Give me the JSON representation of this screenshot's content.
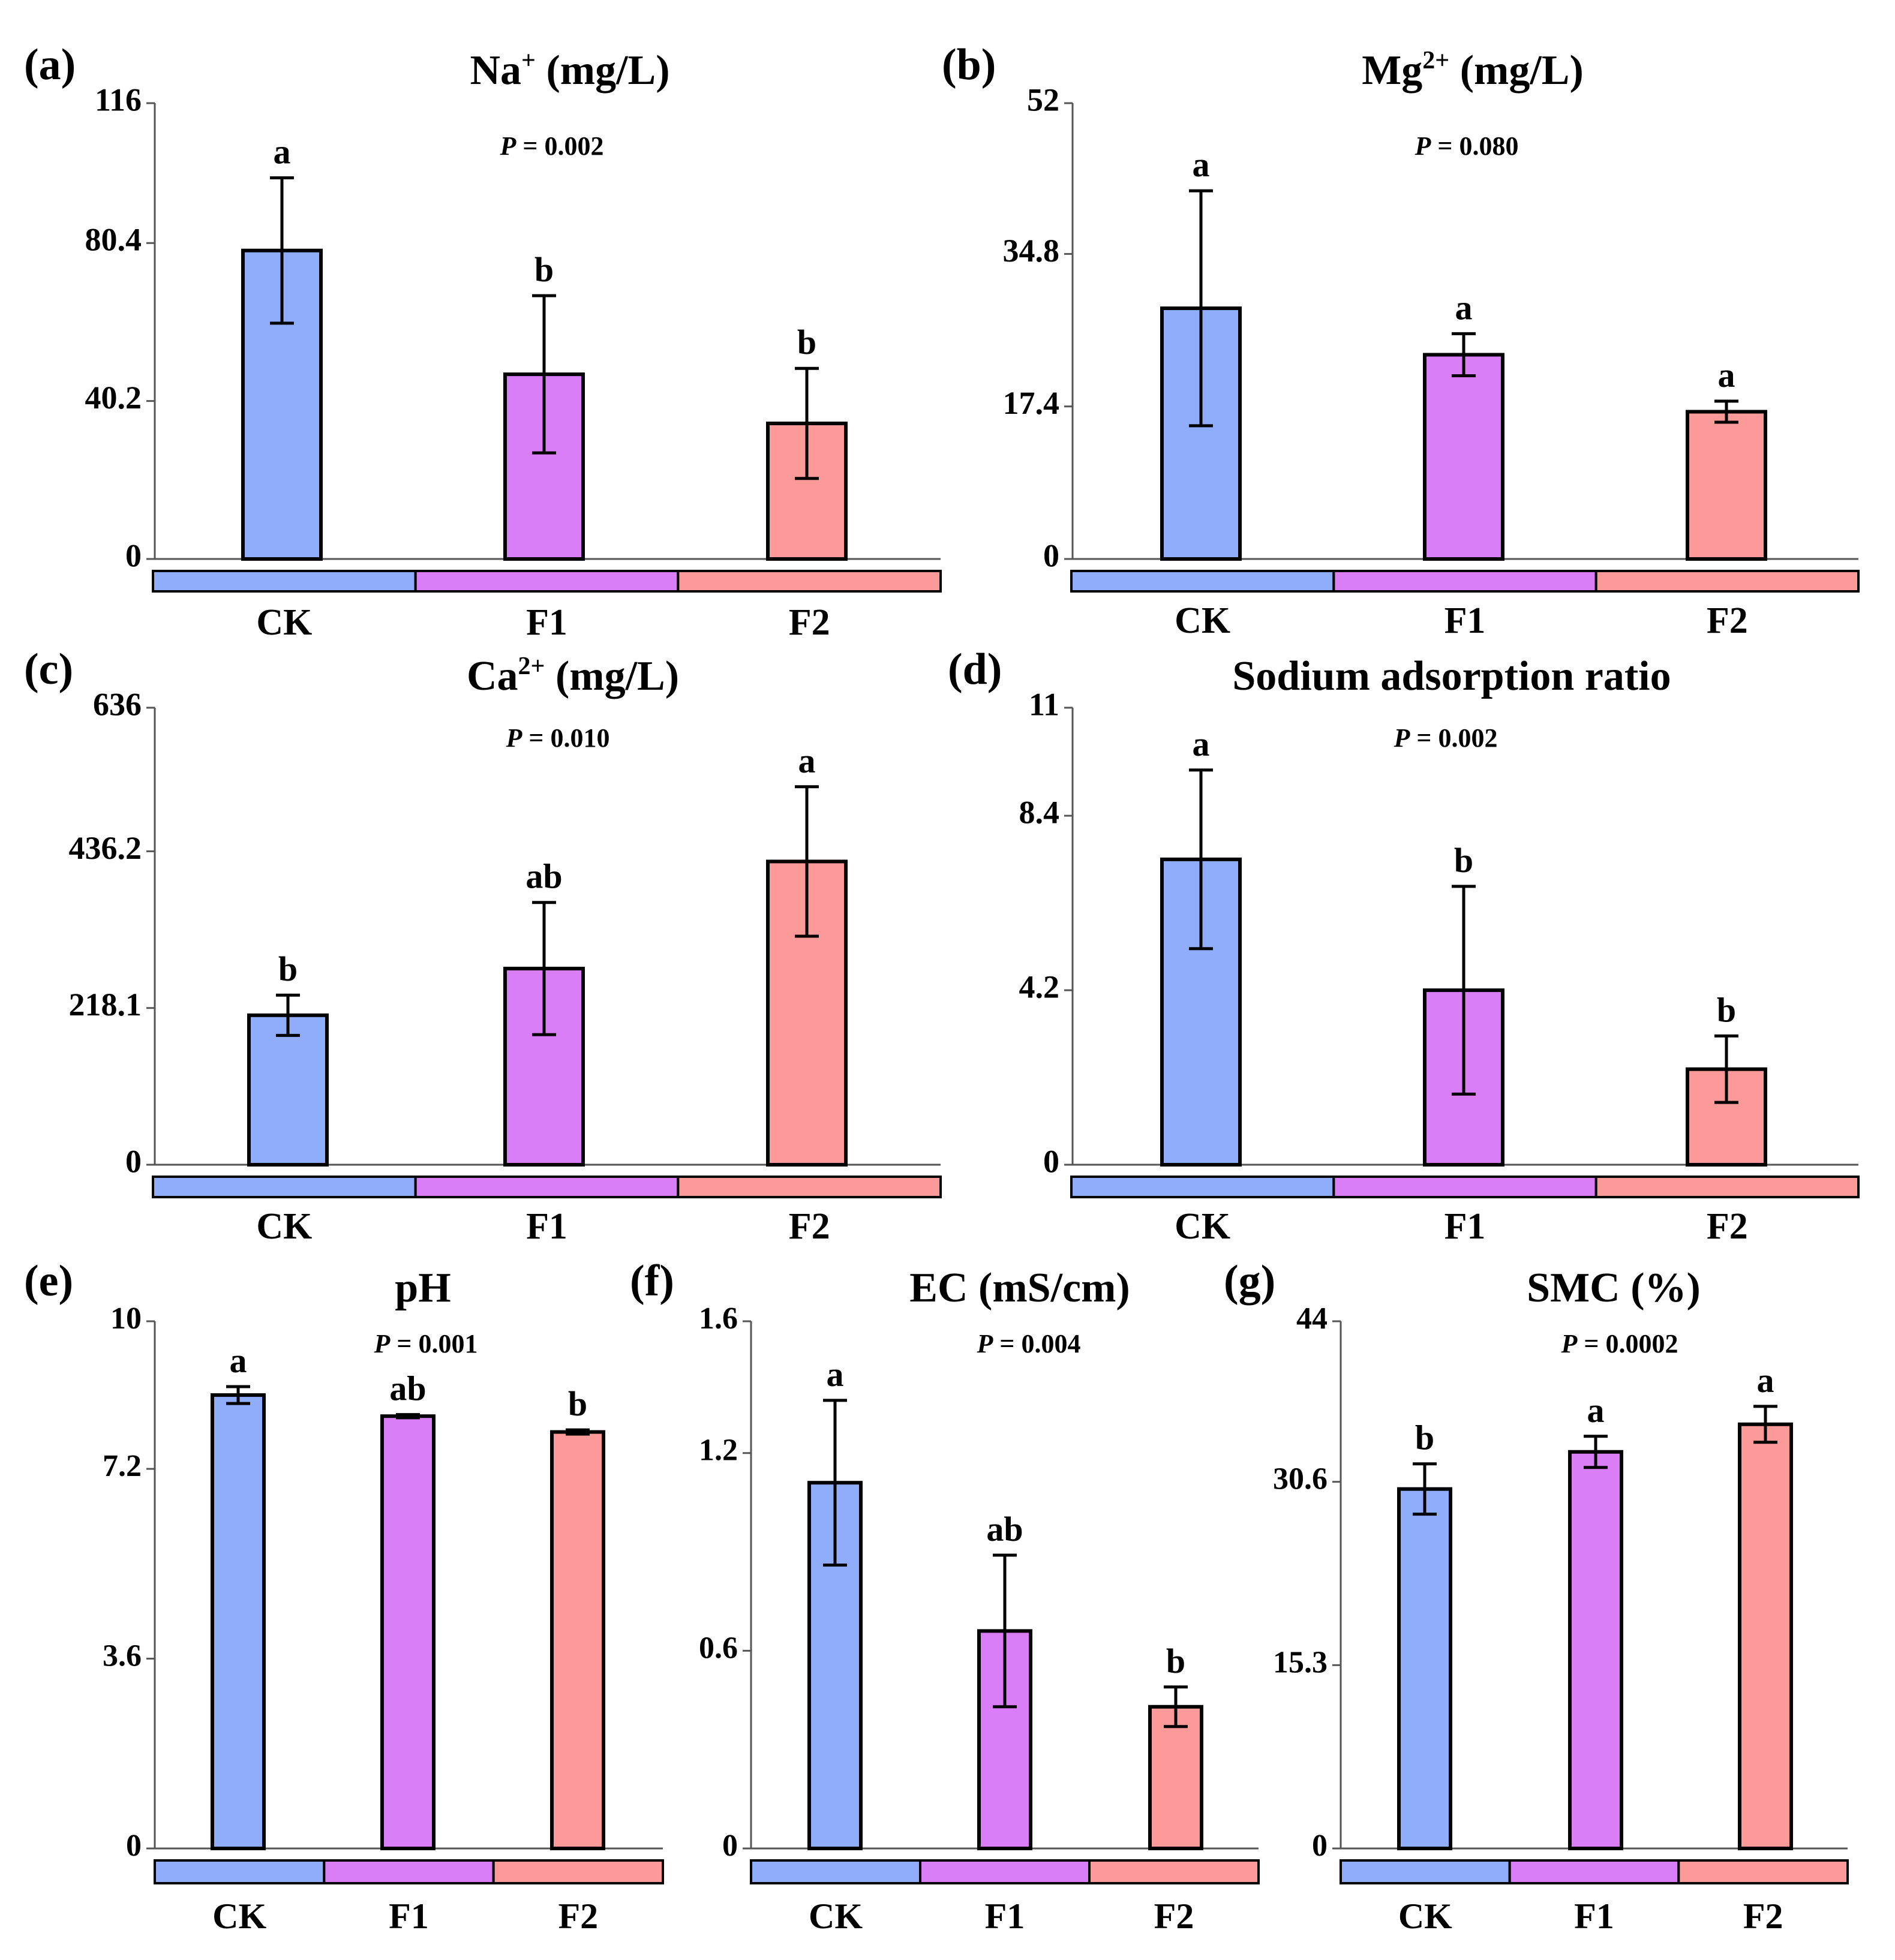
{
  "colors": {
    "CK": "#8fadfb",
    "F1": "#d97ef7",
    "F2": "#fb9a98",
    "axis": "#555555",
    "border": "#000000"
  },
  "chart_data": [
    {
      "type": "bar",
      "panel": "(a)",
      "title": "Na",
      "title_sup": "+",
      "title_unit": " (mg/L)",
      "p_prefix": "P",
      "p_value": " = 0.002",
      "categories": [
        "CK",
        "F1",
        "F2"
      ],
      "values": [
        78.5,
        47,
        34.5
      ],
      "errors": [
        18.5,
        20,
        14
      ],
      "letters": [
        "a",
        "b",
        "b"
      ],
      "yticks": [
        "0",
        "40.2",
        "80.4",
        "116"
      ],
      "ylim": [
        0,
        116
      ]
    },
    {
      "type": "bar",
      "panel": "(b)",
      "title": "Mg",
      "title_sup": "2+",
      "title_unit": " (mg/L)",
      "p_prefix": "P",
      "p_value": " = 0.080",
      "categories": [
        "CK",
        "F1",
        "F2"
      ],
      "values": [
        28.6,
        23.3,
        16.8
      ],
      "errors": [
        13.4,
        2.4,
        1.2
      ],
      "letters": [
        "a",
        "a",
        "a"
      ],
      "yticks": [
        "0",
        "17.4",
        "34.8",
        "52"
      ],
      "ylim": [
        0,
        52
      ]
    },
    {
      "type": "bar",
      "panel": "(c)",
      "title": "Ca",
      "title_sup": "2+",
      "title_unit": " (mg/L)",
      "p_prefix": "P",
      "p_value": " = 0.010",
      "categories": [
        "CK",
        "F1",
        "F2"
      ],
      "values": [
        208,
        273,
        422
      ],
      "errors": [
        28,
        92,
        104
      ],
      "letters": [
        "b",
        "ab",
        "a"
      ],
      "yticks": [
        "0",
        "218.1",
        "436.2",
        "636"
      ],
      "ylim": [
        0,
        636
      ]
    },
    {
      "type": "bar",
      "panel": "(d)",
      "title": "Sodium adsorption ratio",
      "title_sup": "",
      "title_unit": "",
      "p_prefix": "P",
      "p_value": " = 0.002",
      "categories": [
        "CK",
        "F1",
        "F2"
      ],
      "values": [
        7.35,
        4.2,
        2.3
      ],
      "errors": [
        2.15,
        2.5,
        0.8
      ],
      "letters": [
        "a",
        "b",
        "b"
      ],
      "yticks": [
        "0",
        "4.2",
        "8.4",
        "11"
      ],
      "ylim": [
        0,
        11
      ]
    },
    {
      "type": "bar",
      "panel": "(e)",
      "title": "pH",
      "title_sup": "",
      "title_unit": "",
      "p_prefix": "P",
      "p_value": " = 0.001",
      "categories": [
        "CK",
        "F1",
        "F2"
      ],
      "values": [
        8.6,
        8.2,
        7.9
      ],
      "errors": [
        0.16,
        0.03,
        0.04
      ],
      "letters": [
        "a",
        "ab",
        "b"
      ],
      "yticks": [
        "0",
        "3.6",
        "7.2",
        "10"
      ],
      "ylim": [
        0,
        10
      ]
    },
    {
      "type": "bar",
      "panel": "(f)",
      "title": "EC  (mS/cm)",
      "title_sup": "",
      "title_unit": "",
      "p_prefix": "P",
      "p_value": " = 0.004",
      "categories": [
        "CK",
        "F1",
        "F2"
      ],
      "values": [
        1.11,
        0.66,
        0.43
      ],
      "errors": [
        0.25,
        0.23,
        0.06
      ],
      "letters": [
        "a",
        "ab",
        "b"
      ],
      "yticks": [
        "0",
        "0.6",
        "1.2",
        "1.6"
      ],
      "ylim": [
        0,
        1.6
      ]
    },
    {
      "type": "bar",
      "panel": "(g)",
      "title": "SMC  (%)",
      "title_sup": "",
      "title_unit": "",
      "p_prefix": "P",
      "p_value": " = 0.0002",
      "categories": [
        "CK",
        "F1",
        "F2"
      ],
      "values": [
        30,
        33.1,
        35.4
      ],
      "errors": [
        2.1,
        1.3,
        1.5
      ],
      "letters": [
        "b",
        "a",
        "a"
      ],
      "yticks": [
        "0",
        "15.3",
        "30.6",
        "44"
      ],
      "ylim": [
        0,
        44
      ]
    }
  ]
}
